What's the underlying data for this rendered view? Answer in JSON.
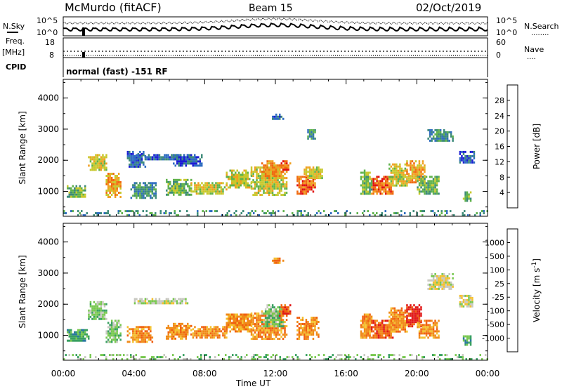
{
  "header": {
    "station": "McMurdo (fitACF)",
    "beam": "Beam 15",
    "date": "02/Oct/2019"
  },
  "noise_panel": {
    "left_label": "N.Sky",
    "right_label": "N.Search",
    "left_ticks": [
      "10^5",
      "10^0"
    ],
    "right_ticks": [
      "10^5",
      "10^0"
    ],
    "right_legend": "........"
  },
  "freq_panel": {
    "left_label_1": "Freq.",
    "left_label_2": "[MHz]",
    "left_ticks": [
      "18",
      "8"
    ],
    "right_label": "Nave",
    "right_ticks": [
      "60",
      "0"
    ],
    "right_legend": "...."
  },
  "cpid_panel": {
    "label": "CPID",
    "text": "normal (fast) -151 RF"
  },
  "chart_data": [
    {
      "type": "heatmap",
      "name": "power",
      "ylabel": "Slant Range [km]",
      "xlabel": "Time UT",
      "ylim": [
        200,
        4600
      ],
      "yticks": [
        "1000",
        "2000",
        "3000",
        "4000"
      ],
      "colorbar_label": "Power [dB]",
      "colorbar_ticks": [
        "4",
        "8",
        "12",
        "16",
        "20",
        "24",
        "28"
      ],
      "colors": [
        "#1c1cd4",
        "#2e6cc0",
        "#3c8a78",
        "#5fb24a",
        "#c8c82c",
        "#f0a020",
        "#f06a10",
        "#e01010"
      ],
      "regions": [
        {
          "t0": 1.4,
          "t1": 2.4,
          "r0": 1700,
          "r1": 2200,
          "level": 4
        },
        {
          "t0": 2.4,
          "t1": 3.2,
          "r0": 800,
          "r1": 1600,
          "level": 5
        },
        {
          "t0": 0.2,
          "t1": 1.2,
          "r0": 800,
          "r1": 1200,
          "level": 3
        },
        {
          "t0": 3.6,
          "t1": 4.6,
          "r0": 1800,
          "r1": 2300,
          "level": 1
        },
        {
          "t0": 3.8,
          "t1": 5.2,
          "r0": 800,
          "r1": 1300,
          "level": 2
        },
        {
          "t0": 4.0,
          "t1": 7.0,
          "r0": 2000,
          "r1": 2200,
          "level": 1
        },
        {
          "t0": 5.8,
          "t1": 7.2,
          "r0": 900,
          "r1": 1400,
          "level": 3
        },
        {
          "t0": 6.2,
          "t1": 7.8,
          "r0": 1800,
          "r1": 2200,
          "level": 1
        },
        {
          "t0": 7.2,
          "t1": 9.2,
          "r0": 900,
          "r1": 1300,
          "level": 4
        },
        {
          "t0": 9.2,
          "t1": 10.6,
          "r0": 1100,
          "r1": 1700,
          "level": 4
        },
        {
          "t0": 10.6,
          "t1": 12.6,
          "r0": 900,
          "r1": 1800,
          "level": 4
        },
        {
          "t0": 11.2,
          "t1": 12.2,
          "r0": 1400,
          "r1": 2000,
          "level": 5
        },
        {
          "t0": 12.2,
          "t1": 12.8,
          "r0": 1600,
          "r1": 2000,
          "level": 6
        },
        {
          "t0": 13.2,
          "t1": 14.2,
          "r0": 900,
          "r1": 1500,
          "level": 6
        },
        {
          "t0": 13.6,
          "t1": 14.6,
          "r0": 1400,
          "r1": 1800,
          "level": 4
        },
        {
          "t0": 16.8,
          "t1": 17.4,
          "r0": 900,
          "r1": 1700,
          "level": 3
        },
        {
          "t0": 17.4,
          "t1": 18.6,
          "r0": 900,
          "r1": 1500,
          "level": 6
        },
        {
          "t0": 18.4,
          "t1": 19.4,
          "r0": 1200,
          "r1": 1900,
          "level": 4
        },
        {
          "t0": 19.4,
          "t1": 20.4,
          "r0": 1300,
          "r1": 2000,
          "level": 5
        },
        {
          "t0": 20.0,
          "t1": 21.2,
          "r0": 900,
          "r1": 1500,
          "level": 3
        },
        {
          "t0": 20.6,
          "t1": 22.0,
          "r0": 2600,
          "r1": 3000,
          "level": 2
        },
        {
          "t0": 22.4,
          "t1": 23.2,
          "r0": 1900,
          "r1": 2300,
          "level": 1
        },
        {
          "t0": 22.6,
          "t1": 23.0,
          "r0": 700,
          "r1": 1000,
          "level": 3
        },
        {
          "t0": 11.8,
          "t1": 12.4,
          "r0": 3300,
          "r1": 3500,
          "level": 1
        },
        {
          "t0": 13.8,
          "t1": 14.2,
          "r0": 2700,
          "r1": 3000,
          "level": 2
        },
        {
          "t0": 0.0,
          "t1": 24.0,
          "r0": 200,
          "r1": 400,
          "level": 2
        }
      ]
    },
    {
      "type": "heatmap",
      "name": "velocity",
      "ylabel": "Slant Range [km]",
      "xlabel": "Time UT",
      "ylim": [
        200,
        4600
      ],
      "yticks": [
        "1000",
        "2000",
        "3000",
        "4000"
      ],
      "colorbar_label": "Velocity [m s",
      "colorbar_label_sup": "-1",
      "colorbar_ticks": [
        "1000",
        "500",
        "100",
        "25",
        "-25",
        "-100",
        "-500",
        "-1000"
      ],
      "colors": [
        "#1c3cb4",
        "#2a78a0",
        "#38a060",
        "#78c850",
        "#c8c8c0",
        "#f4c030",
        "#f08a18",
        "#f06010",
        "#e01818"
      ],
      "regions": [
        {
          "t0": 1.4,
          "t1": 2.4,
          "r0": 1500,
          "r1": 2100,
          "level": 3
        },
        {
          "t0": 2.4,
          "t1": 3.2,
          "r0": 800,
          "r1": 1500,
          "level": 3
        },
        {
          "t0": 0.2,
          "t1": 1.4,
          "r0": 800,
          "r1": 1200,
          "level": 2
        },
        {
          "t0": 3.6,
          "t1": 5.0,
          "r0": 800,
          "r1": 1300,
          "level": 6
        },
        {
          "t0": 4.0,
          "t1": 7.0,
          "r0": 2000,
          "r1": 2200,
          "level": 4
        },
        {
          "t0": 5.8,
          "t1": 7.2,
          "r0": 900,
          "r1": 1400,
          "level": 6
        },
        {
          "t0": 7.2,
          "t1": 9.2,
          "r0": 900,
          "r1": 1300,
          "level": 6
        },
        {
          "t0": 9.2,
          "t1": 10.6,
          "r0": 1100,
          "r1": 1700,
          "level": 6
        },
        {
          "t0": 10.6,
          "t1": 12.6,
          "r0": 900,
          "r1": 1800,
          "level": 6
        },
        {
          "t0": 11.2,
          "t1": 12.4,
          "r0": 1300,
          "r1": 2000,
          "level": 3
        },
        {
          "t0": 12.2,
          "t1": 12.8,
          "r0": 1600,
          "r1": 2000,
          "level": 7
        },
        {
          "t0": 13.2,
          "t1": 14.4,
          "r0": 900,
          "r1": 1600,
          "level": 6
        },
        {
          "t0": 16.8,
          "t1": 17.4,
          "r0": 900,
          "r1": 1700,
          "level": 6
        },
        {
          "t0": 17.4,
          "t1": 18.6,
          "r0": 900,
          "r1": 1500,
          "level": 7
        },
        {
          "t0": 18.4,
          "t1": 19.4,
          "r0": 1100,
          "r1": 1900,
          "level": 6
        },
        {
          "t0": 19.4,
          "t1": 20.2,
          "r0": 1300,
          "r1": 2000,
          "level": 8
        },
        {
          "t0": 20.0,
          "t1": 21.2,
          "r0": 900,
          "r1": 1500,
          "level": 6
        },
        {
          "t0": 20.6,
          "t1": 22.0,
          "r0": 2500,
          "r1": 3000,
          "level": 4
        },
        {
          "t0": 22.4,
          "t1": 23.2,
          "r0": 1900,
          "r1": 2300,
          "level": 4
        },
        {
          "t0": 22.6,
          "t1": 23.0,
          "r0": 700,
          "r1": 1000,
          "level": 2
        },
        {
          "t0": 11.8,
          "t1": 12.4,
          "r0": 3300,
          "r1": 3500,
          "level": 6
        },
        {
          "t0": 0.0,
          "t1": 24.0,
          "r0": 200,
          "r1": 400,
          "level": 3
        }
      ]
    }
  ],
  "time_axis": {
    "ticks": [
      "00:00",
      "04:00",
      "08:00",
      "12:00",
      "16:00",
      "20:00",
      "00:00"
    ],
    "label": "Time UT"
  }
}
